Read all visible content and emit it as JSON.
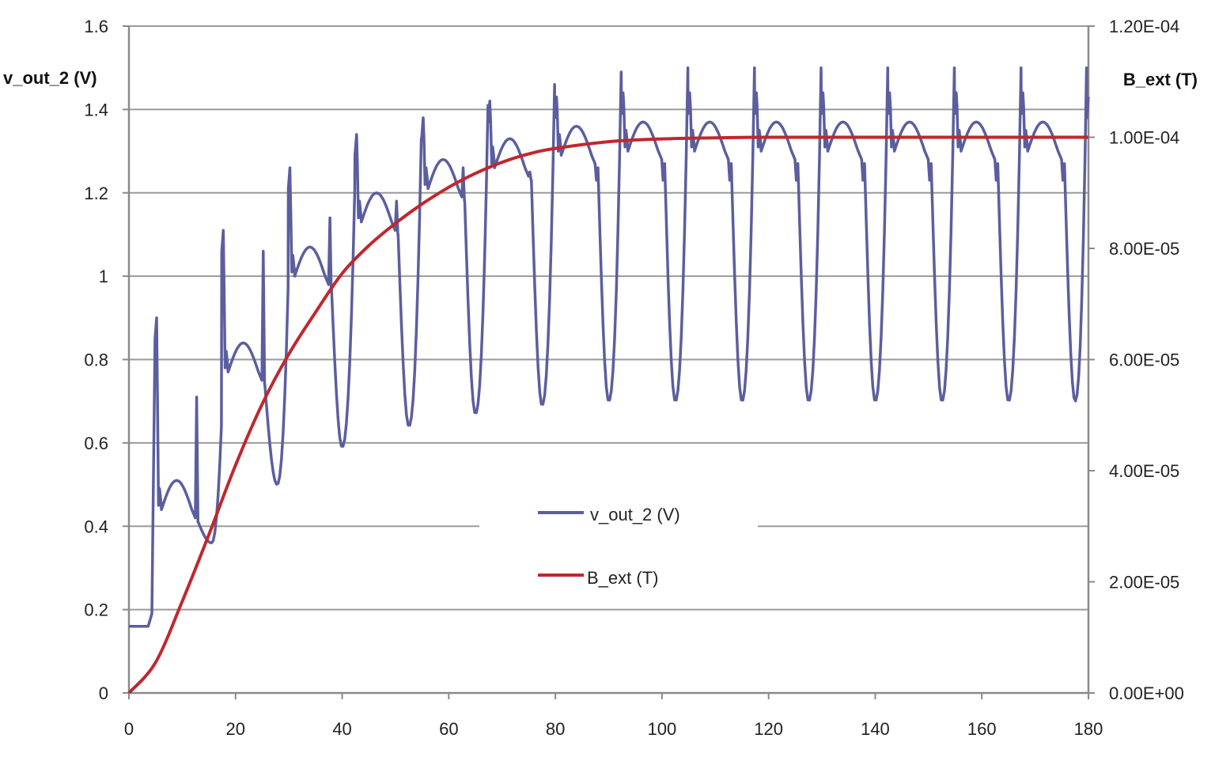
{
  "chart_data": {
    "type": "line",
    "title": "",
    "xlabel": "",
    "ylabel": "v_out_2 (V)",
    "y2label": "B_ext (T)",
    "xlim": [
      0,
      180
    ],
    "ylim": [
      0,
      1.6
    ],
    "y2lim": [
      0,
      0.00012
    ],
    "x_ticks": [
      "0",
      "20",
      "40",
      "60",
      "80",
      "100",
      "120",
      "140",
      "160",
      "180"
    ],
    "y_ticks": [
      "0",
      "0.2",
      "0.4",
      "0.6",
      "0.8",
      "1",
      "1.2",
      "1.4",
      "1.6"
    ],
    "y2_ticks": [
      "0.00E+00",
      "2.00E-05",
      "4.00E-05",
      "6.00E-05",
      "8.00E-05",
      "1.00E-04",
      "1.20E-04"
    ],
    "grid": "horizontal",
    "legend_position": "center",
    "series": [
      {
        "name": "v_out_2 (V)",
        "axis": "left",
        "color": "#5b5e9e",
        "baseline": 0.16,
        "switch_on_x": 5,
        "period": 12.5,
        "spike_x": [
          5.2,
          17.7,
          30.2,
          42.7,
          55.2,
          67.7,
          80.2,
          92.7,
          105.2,
          117.7,
          130.2,
          142.7,
          155.2,
          167.7,
          180
        ],
        "spike_peak": [
          0.9,
          1.11,
          1.26,
          1.34,
          1.38,
          1.42,
          1.43,
          1.44,
          1.44,
          1.44,
          1.44,
          1.44,
          1.44,
          1.44,
          1.43
        ],
        "dip_x": [
          12.7,
          25.2,
          37.7,
          50.2,
          62.7,
          75.2,
          87.7,
          100.2,
          112.7,
          125.2,
          137.7,
          150.2,
          162.7,
          175.2
        ],
        "dip_peak": [
          0.71,
          1.06,
          1.14,
          1.18,
          1.26,
          1.25,
          1.23,
          1.23,
          1.23,
          1.23,
          1.23,
          1.23,
          1.23,
          1.23
        ],
        "trough_x": [
          15.5,
          27.8,
          40,
          52.5,
          65,
          77.5,
          90,
          102.5,
          115,
          127.5,
          140,
          152.5,
          165,
          177.5
        ],
        "trough_min": [
          0.36,
          0.5,
          0.59,
          0.64,
          0.67,
          0.69,
          0.7,
          0.7,
          0.7,
          0.7,
          0.7,
          0.7,
          0.7,
          0.7
        ],
        "plateau_max": [
          0.51,
          0.84,
          1.07,
          1.2,
          1.28,
          1.33,
          1.36,
          1.37,
          1.37,
          1.37,
          1.37,
          1.37,
          1.37,
          1.37
        ]
      },
      {
        "name": "B_ext (T)",
        "axis": "right",
        "color": "#c0272d",
        "x": [
          0,
          5,
          10,
          15,
          20,
          25,
          30,
          35,
          40,
          45,
          50,
          55,
          60,
          65,
          70,
          75,
          80,
          90,
          100,
          110,
          120,
          140,
          160,
          180
        ],
        "values": [
          0,
          5.5e-06,
          1.65e-05,
          2.85e-05,
          4.1e-05,
          5.2e-05,
          6.1e-05,
          6.85e-05,
          7.55e-05,
          8.05e-05,
          8.45e-05,
          8.8e-05,
          9.1e-05,
          9.35e-05,
          9.55e-05,
          9.7e-05,
          9.8e-05,
          9.92e-05,
          9.97e-05,
          9.99e-05,
          0.0001,
          0.0001,
          0.0001,
          0.0001
        ]
      }
    ]
  }
}
